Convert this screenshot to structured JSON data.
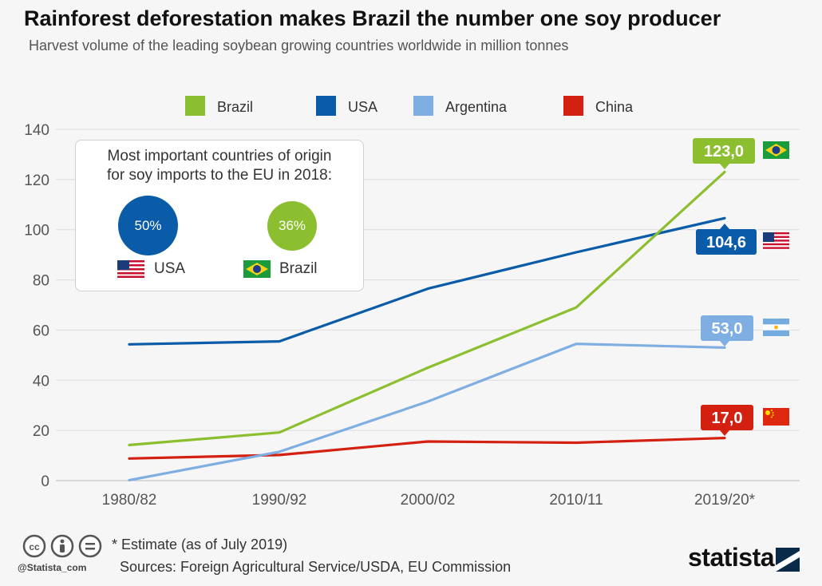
{
  "title": "Rainforest deforestation makes Brazil the number one soy producer",
  "subtitle": "Harvest volume of the leading soybean growing countries worldwide in million tonnes",
  "chart_data": {
    "type": "line",
    "categories": [
      "1980/82",
      "1990/92",
      "2000/02",
      "2010/11",
      "2019/20*"
    ],
    "ylim": [
      0,
      140
    ],
    "yticks": [
      0,
      20,
      40,
      60,
      80,
      100,
      120,
      140
    ],
    "grid": true,
    "legend_position": "top",
    "series": [
      {
        "name": "Brazil",
        "color": "#8cbf2f",
        "values": [
          14.2,
          19.2,
          45.0,
          69.0,
          123.0
        ],
        "end_label": "123,0",
        "flag": "brazil-flag"
      },
      {
        "name": "USA",
        "color": "#0a5ba8",
        "values": [
          54.3,
          55.5,
          76.5,
          91.0,
          104.6
        ],
        "end_label": "104,6",
        "flag": "usa-flag"
      },
      {
        "name": "Argentina",
        "color": "#7faee3",
        "values": [
          0.2,
          11.5,
          31.5,
          54.5,
          53.0
        ],
        "end_label": "53,0",
        "flag": "argentina-flag"
      },
      {
        "name": "China",
        "color": "#d42010",
        "values": [
          8.8,
          10.2,
          15.6,
          15.1,
          17.0
        ],
        "end_label": "17,0",
        "flag": "china-flag"
      }
    ]
  },
  "inset": {
    "title_line1": "Most important countries of origin",
    "title_line2": "for soy imports to the EU in 2018:",
    "items": [
      {
        "country": "USA",
        "share": "50%",
        "color": "#0a5ba8",
        "flag": "usa-flag"
      },
      {
        "country": "Brazil",
        "share": "36%",
        "color": "#8cbf2f",
        "flag": "brazil-flag"
      }
    ]
  },
  "footer": {
    "note": "* Estimate (as of July 2019)",
    "sources": "Sources: Foreign Agricultural Service/USDA, EU Commission",
    "handle": "@Statista_com",
    "brand": "statista",
    "icons": [
      "cc-icon",
      "by-icon",
      "nd-icon"
    ]
  }
}
